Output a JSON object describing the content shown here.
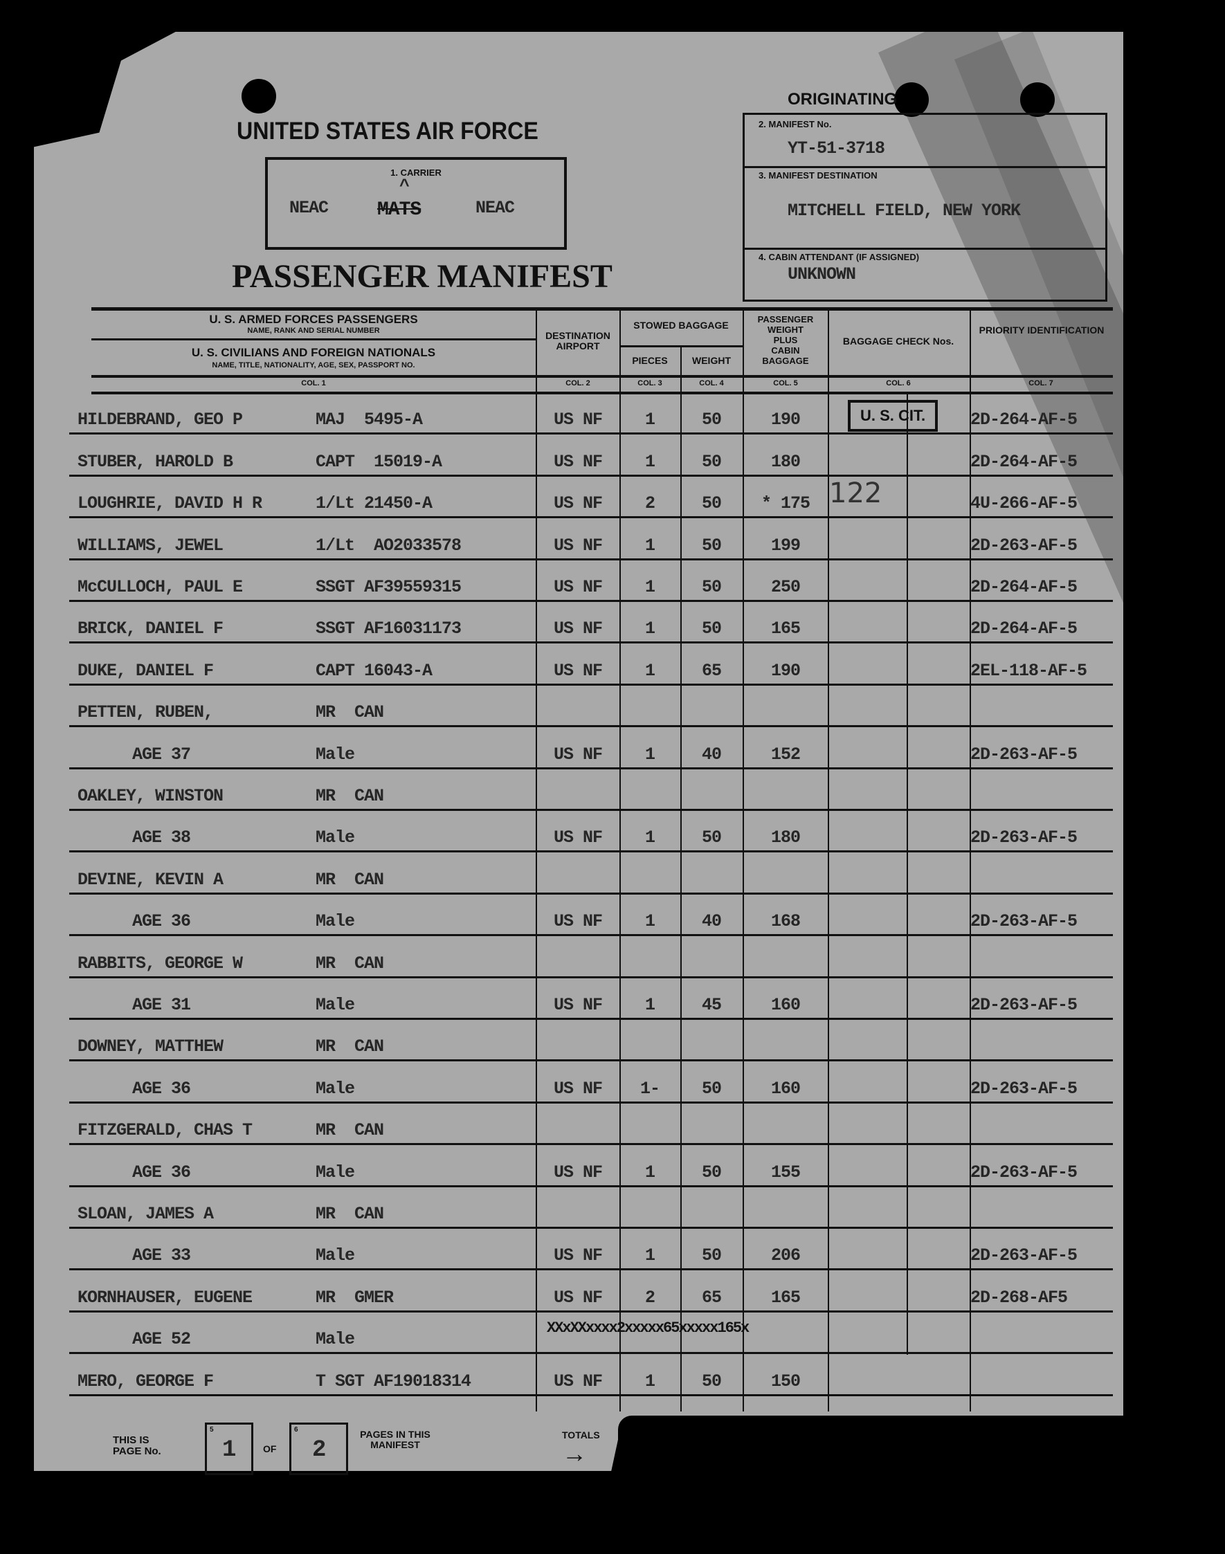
{
  "header": {
    "originating": "ORIGINATING",
    "agency": "UNITED STATES AIR FORCE",
    "form_title": "PASSENGER MANIFEST"
  },
  "carrier": {
    "label": "1. CARRIER",
    "left": "NEAC",
    "struck": "MATS",
    "insert_mark": "^",
    "right": "NEAC"
  },
  "manifest": {
    "no_label": "2. MANIFEST No.",
    "no_value": "YT-51-3718",
    "dest_label": "3. MANIFEST DESTINATION",
    "dest_value": "MITCHELL FIELD, NEW YORK",
    "attendant_label": "4. CABIN ATTENDANT (IF ASSIGNED)",
    "attendant_value": "UNKNOWN"
  },
  "columns": {
    "col1_top": "U. S. ARMED FORCES PASSENGERS",
    "col1_top_sub": "NAME, RANK AND SERIAL NUMBER",
    "col1_bottom": "U. S. CIVILIANS AND FOREIGN NATIONALS",
    "col1_bottom_sub": "NAME, TITLE, NATIONALITY, AGE, SEX, PASSPORT NO.",
    "destination": "DESTINATION AIRPORT",
    "stowed": "STOWED BAGGAGE",
    "pieces": "PIECES",
    "weight": "WEIGHT",
    "pax_weight": [
      "PASSENGER",
      "WEIGHT",
      "PLUS",
      "CABIN",
      "BAGGAGE"
    ],
    "check": "BAGGAGE CHECK Nos.",
    "priority": "PRIORITY IDENTIFICATION",
    "col_nums": [
      "COL. 1",
      "COL. 2",
      "COL. 3",
      "COL. 4",
      "COL. 5",
      "COL. 6",
      "COL. 7"
    ]
  },
  "stamp": "U. S. CIT.",
  "handwritten_check": "122",
  "rows": [
    {
      "name": "HILDEBRAND, GEO P",
      "info": "MAJ  5495-A",
      "dest": "US NF",
      "pieces": "1",
      "weight": "50",
      "total": "190",
      "priority": "2D-264-AF-5"
    },
    {
      "name": "STUBER, HAROLD B",
      "info": "CAPT  15019-A",
      "dest": "US NF",
      "pieces": "1",
      "weight": "50",
      "total": "180",
      "priority": "2D-264-AF-5"
    },
    {
      "name": "LOUGHRIE, DAVID H R",
      "info": "1/Lt 21450-A",
      "dest": "US NF",
      "pieces": "2",
      "weight": "50",
      "total": "* 175",
      "priority": "4U-266-AF-5"
    },
    {
      "name": "WILLIAMS, JEWEL",
      "info": "1/Lt  AO2033578",
      "dest": "US NF",
      "pieces": "1",
      "weight": "50",
      "total": "199",
      "priority": "2D-263-AF-5"
    },
    {
      "name": "McCULLOCH, PAUL E",
      "info": "SSGT AF39559315",
      "dest": "US NF",
      "pieces": "1",
      "weight": "50",
      "total": "250",
      "priority": "2D-264-AF-5"
    },
    {
      "name": "BRICK, DANIEL F",
      "info": "SSGT AF16031173",
      "dest": "US NF",
      "pieces": "1",
      "weight": "50",
      "total": "165",
      "priority": "2D-264-AF-5"
    },
    {
      "name": "DUKE, DANIEL F",
      "info": "CAPT 16043-A",
      "dest": "US NF",
      "pieces": "1",
      "weight": "65",
      "total": "190",
      "priority": "2EL-118-AF-5"
    },
    {
      "name": "PETTEN, RUBEN,",
      "info": "MR  CAN"
    },
    {
      "name": "AGE 37",
      "info": "Male",
      "indent": true,
      "dest": "US NF",
      "pieces": "1",
      "weight": "40",
      "total": "152",
      "priority": "2D-263-AF-5"
    },
    {
      "name": "OAKLEY, WINSTON",
      "info": "MR  CAN"
    },
    {
      "name": "AGE 38",
      "info": "Male",
      "indent": true,
      "dest": "US NF",
      "pieces": "1",
      "weight": "50",
      "total": "180",
      "priority": "2D-263-AF-5"
    },
    {
      "name": "DEVINE, KEVIN A",
      "info": "MR  CAN"
    },
    {
      "name": "AGE 36",
      "info": "Male",
      "indent": true,
      "dest": "US NF",
      "pieces": "1",
      "weight": "40",
      "total": "168",
      "priority": "2D-263-AF-5"
    },
    {
      "name": "RABBITS, GEORGE W",
      "info": "MR  CAN"
    },
    {
      "name": "AGE 31",
      "info": "Male",
      "indent": true,
      "dest": "US NF",
      "pieces": "1",
      "weight": "45",
      "total": "160",
      "priority": "2D-263-AF-5"
    },
    {
      "name": "DOWNEY, MATTHEW",
      "info": "MR  CAN"
    },
    {
      "name": "AGE 36",
      "info": "Male",
      "indent": true,
      "dest": "US NF",
      "pieces": "1-",
      "weight": "50",
      "total": "160",
      "priority": "2D-263-AF-5"
    },
    {
      "name": "FITZGERALD, CHAS T",
      "info": "MR  CAN"
    },
    {
      "name": "AGE 36",
      "info": "Male",
      "indent": true,
      "dest": "US NF",
      "pieces": "1",
      "weight": "50",
      "total": "155",
      "priority": "2D-263-AF-5"
    },
    {
      "name": "SLOAN, JAMES A",
      "info": "MR  CAN"
    },
    {
      "name": "AGE 33",
      "info": "Male",
      "indent": true,
      "dest": "US NF",
      "pieces": "1",
      "weight": "50",
      "total": "206",
      "priority": "2D-263-AF-5"
    },
    {
      "name": "KORNHAUSER, EUGENE",
      "info": "MR  GMER",
      "dest": "US NF",
      "pieces": "2",
      "weight": "65",
      "total": "165",
      "priority": "2D-268-AF5"
    },
    {
      "name": "AGE 52",
      "info": "Male",
      "indent": true,
      "struck": "XXxXXxxxx2xxxxx65xxxxx165x"
    },
    {
      "name": "MERO, GEORGE F",
      "info": "T SGT AF19018314",
      "dest": "US NF",
      "pieces": "1",
      "weight": "50",
      "total": "150"
    }
  ],
  "footer": {
    "this_is": "THIS IS PAGE No.",
    "box5_num": "5",
    "page": "1",
    "of": "OF",
    "box6_num": "6",
    "pages": "2",
    "pages_label": "PAGES IN THIS MANIFEST",
    "totals": "TOTALS",
    "arrow": "→"
  }
}
